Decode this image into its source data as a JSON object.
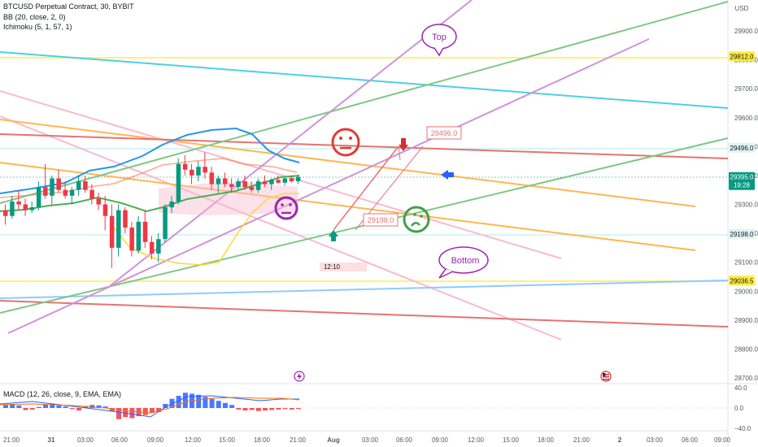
{
  "header": {
    "symbol_line": "BTCUSD Perpetual Contract, 30, BYBIT",
    "bb_line": "BB (20, close, 2, 0)",
    "ichimoku_line": "Ichimoku (5, 1, 57, 1)",
    "currency": "USD"
  },
  "macd": {
    "label": "MACD (12, 26, close, 9, EMA, EMA)",
    "ticks": [
      "40.0",
      "0.0",
      "−40.0"
    ]
  },
  "chart_data": {
    "type": "candlestick",
    "price_axis": {
      "ylim": [
        28650,
        30050
      ],
      "ticks": [
        "29900.0",
        "29800.0",
        "29700.0",
        "29600.0",
        "29500.0",
        "29400.0",
        "29300.0",
        "29200.0",
        "29100.0",
        "29000.0",
        "28900.0",
        "28800.0",
        "28700.0"
      ]
    },
    "time_axis": {
      "ticks": [
        "21:00",
        "31",
        "03:00",
        "06:00",
        "09:00",
        "12:00",
        "15:00",
        "18:00",
        "21:00",
        "Aug",
        "03:00",
        "06:00",
        "09:00",
        "12:00",
        "15:00",
        "18:00",
        "21:00",
        "2",
        "03:00",
        "06:00",
        "09:00"
      ]
    },
    "price_tags": [
      {
        "label": "29812.0",
        "value": 29812,
        "bg": "#ffeb3b",
        "fg": "#131722"
      },
      {
        "label": "29496.0",
        "value": 29496,
        "bg": "#e0f2f1",
        "fg": "#131722"
      },
      {
        "label": "29395.0",
        "sub": "19:28",
        "value": 29395,
        "bg": "#089981",
        "fg": "#ffffff"
      },
      {
        "label": "29198.0",
        "value": 29198,
        "bg": "#e0f2f1",
        "fg": "#131722"
      },
      {
        "label": "29036.5",
        "value": 29036.5,
        "bg": "#ffeb3b",
        "fg": "#131722"
      }
    ],
    "annotations": [
      {
        "text": "Top",
        "kind": "bubble"
      },
      {
        "text": "Bottom",
        "kind": "bubble"
      },
      {
        "text": "29496.0",
        "kind": "price-label"
      },
      {
        "text": "29198.0",
        "kind": "price-label"
      },
      {
        "text": "12:10",
        "kind": "time-label"
      }
    ],
    "candles": [
      [
        29280,
        29300,
        29230,
        29260
      ],
      [
        29260,
        29330,
        29250,
        29310
      ],
      [
        29310,
        29350,
        29280,
        29300
      ],
      [
        29300,
        29320,
        29260,
        29280
      ],
      [
        29280,
        29310,
        29270,
        29290
      ],
      [
        29290,
        29380,
        29280,
        29360
      ],
      [
        29360,
        29440,
        29320,
        29330
      ],
      [
        29330,
        29400,
        29300,
        29390
      ],
      [
        29390,
        29420,
        29340,
        29350
      ],
      [
        29350,
        29380,
        29320,
        29330
      ],
      [
        29330,
        29360,
        29300,
        29350
      ],
      [
        29350,
        29400,
        29330,
        29380
      ],
      [
        29380,
        29400,
        29340,
        29350
      ],
      [
        29350,
        29370,
        29300,
        29320
      ],
      [
        29320,
        29340,
        29280,
        29300
      ],
      [
        29300,
        29330,
        29210,
        29260
      ],
      [
        29260,
        29300,
        29080,
        29150
      ],
      [
        29150,
        29300,
        29120,
        29280
      ],
      [
        29280,
        29290,
        29200,
        29220
      ],
      [
        29220,
        29240,
        29120,
        29140
      ],
      [
        29140,
        29260,
        29130,
        29240
      ],
      [
        29240,
        29280,
        29150,
        29170
      ],
      [
        29170,
        29190,
        29110,
        29130
      ],
      [
        29130,
        29200,
        29100,
        29180
      ],
      [
        29180,
        29300,
        29170,
        29290
      ],
      [
        29290,
        29330,
        29270,
        29310
      ],
      [
        29310,
        29460,
        29300,
        29440
      ],
      [
        29440,
        29470,
        29400,
        29420
      ],
      [
        29420,
        29440,
        29370,
        29400
      ],
      [
        29400,
        29450,
        29380,
        29430
      ],
      [
        29430,
        29480,
        29390,
        29410
      ],
      [
        29410,
        29430,
        29350,
        29370
      ],
      [
        29370,
        29400,
        29340,
        29390
      ],
      [
        29390,
        29410,
        29360,
        29370
      ],
      [
        29370,
        29390,
        29340,
        29360
      ],
      [
        29360,
        29390,
        29350,
        29380
      ],
      [
        29380,
        29400,
        29350,
        29360
      ],
      [
        29360,
        29380,
        29340,
        29350
      ],
      [
        29350,
        29390,
        29340,
        29380
      ],
      [
        29380,
        29400,
        29360,
        29370
      ],
      [
        29370,
        29390,
        29350,
        29385
      ],
      [
        29385,
        29400,
        29370,
        29375
      ],
      [
        29375,
        29395,
        29365,
        29390
      ],
      [
        29390,
        29400,
        29375,
        29380
      ],
      [
        29380,
        29398,
        29370,
        29395
      ]
    ],
    "macd_hist": [
      6,
      8,
      5,
      -4,
      -3,
      2,
      7,
      9,
      5,
      3,
      -2,
      -5,
      4,
      6,
      5,
      3,
      -6,
      -22,
      -18,
      -20,
      -16,
      -14,
      -10,
      -8,
      8,
      18,
      24,
      30,
      28,
      26,
      22,
      18,
      14,
      10,
      6,
      -3,
      -5,
      -4,
      -6,
      -5,
      -4,
      -3,
      -2,
      -3,
      -2
    ]
  }
}
